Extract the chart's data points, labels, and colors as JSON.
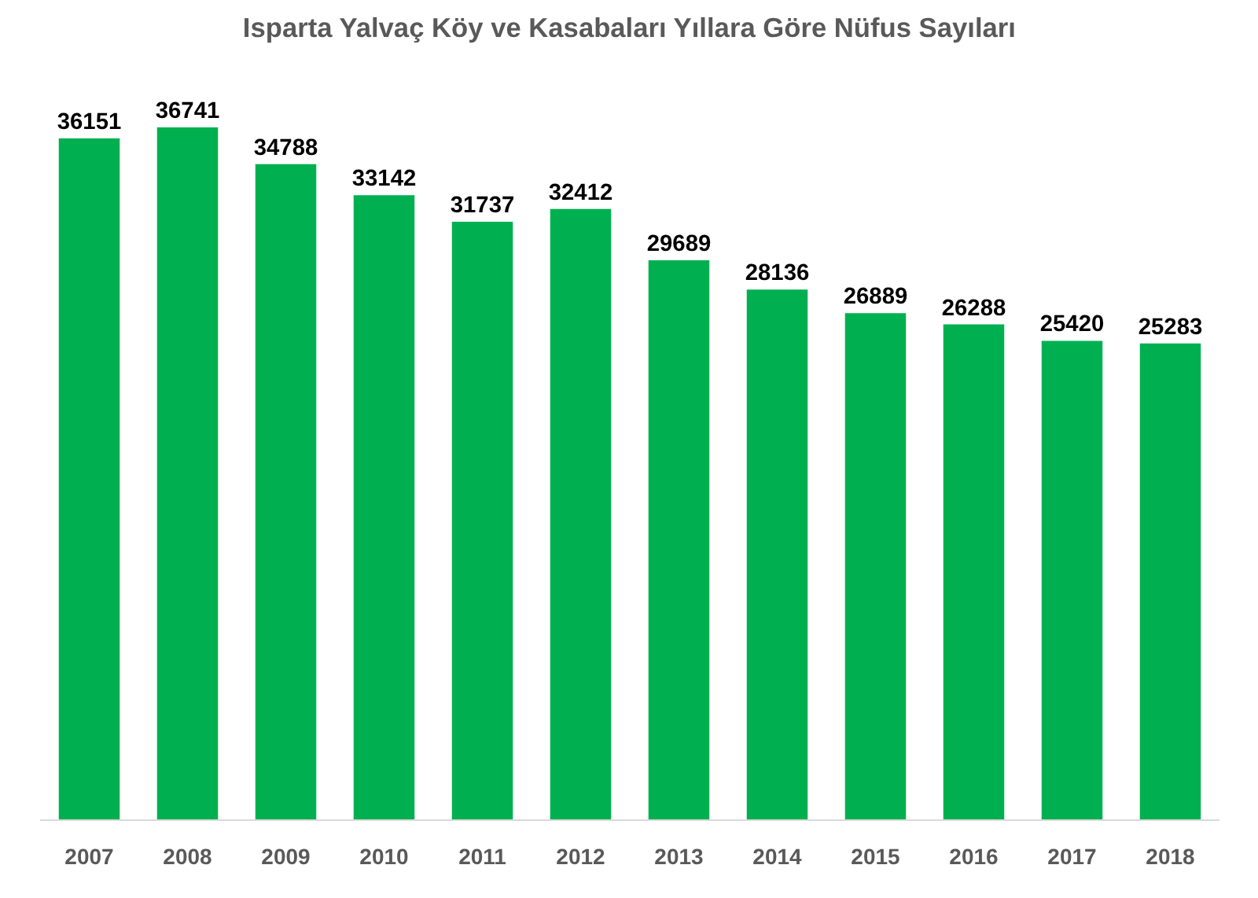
{
  "chart_data": {
    "type": "bar",
    "title": "Isparta Yalvaç Köy ve Kasabaları Yıllara Göre Nüfus Sayıları",
    "categories": [
      "2007",
      "2008",
      "2009",
      "2010",
      "2011",
      "2012",
      "2013",
      "2014",
      "2015",
      "2016",
      "2017",
      "2018"
    ],
    "values": [
      36151,
      36741,
      34788,
      33142,
      31737,
      32412,
      29689,
      28136,
      26889,
      26288,
      25420,
      25283
    ],
    "color": "#00b050",
    "data_labels": true,
    "grid": false
  }
}
